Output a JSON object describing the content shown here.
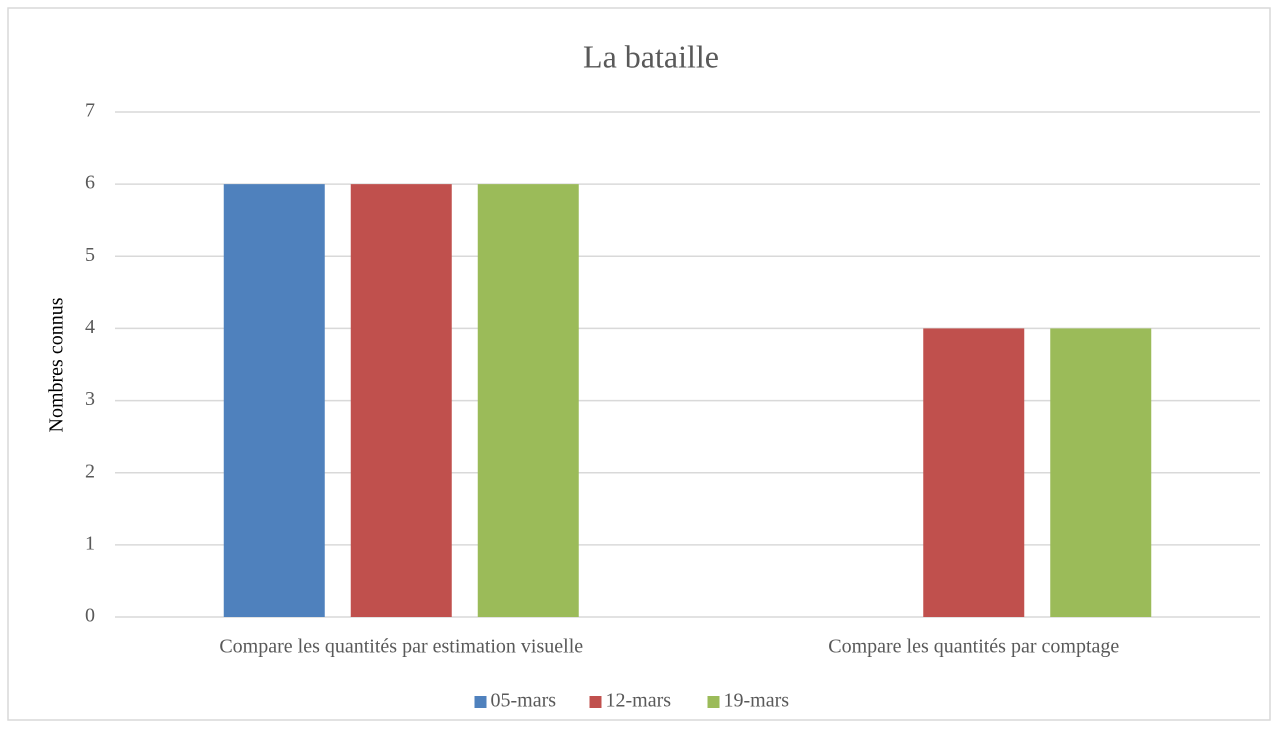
{
  "chart_data": {
    "type": "bar",
    "title": "La bataille",
    "y_label": "Nombres connus",
    "categories": [
      "Compare les quantités par estimation visuelle",
      "Compare les quantités par comptage"
    ],
    "series": [
      {
        "name": "05-mars",
        "color": "#4f81bd",
        "values": [
          6,
          0
        ]
      },
      {
        "name": "12-mars",
        "color": "#c0504d",
        "values": [
          6,
          4
        ]
      },
      {
        "name": "19-mars",
        "color": "#9bbb59",
        "values": [
          6,
          4
        ]
      }
    ],
    "ylim": [
      0,
      7
    ],
    "yticks": [
      0,
      1,
      2,
      3,
      4,
      5,
      6,
      7
    ],
    "grid": true,
    "legend": "bottom"
  }
}
